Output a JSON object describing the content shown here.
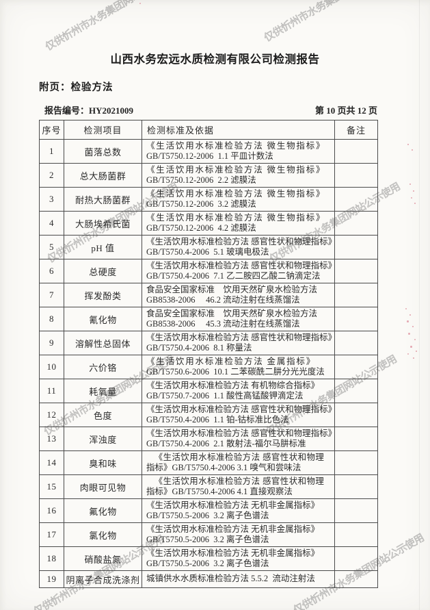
{
  "page": {
    "title": "山西水务宏远水质检测有限公司检测报告",
    "subtitle": "附页：检验方法",
    "report_no_label": "报告编号：",
    "report_no": "HY2021009",
    "page_indicator": "第 10 页共 12 页",
    "watermark": "仅供忻州市水务集团网站公示使用",
    "colors": {
      "watermark_gray": "#808080",
      "seal_residue_red": "#cc4a62",
      "paper": "#fbfaf7",
      "ink": "#2b2b2b"
    }
  },
  "table": {
    "headers": [
      "序号",
      "检测项目",
      "检测标准及依据",
      "备注"
    ],
    "rows": [
      {
        "no": "1",
        "item": "菌落总数",
        "line1": "《生活饮用水标准检验方法 微生物指标》",
        "line2": "GB/T5750.12-2006  1.1 平皿计数法",
        "style1": "spread",
        "remark": ""
      },
      {
        "no": "2",
        "item": "总大肠菌群",
        "line1": "《生活饮用水标准检验方法 微生物指标》",
        "line2": "GB/T5750.12-2006  2.2 滤膜法",
        "style1": "spread",
        "remark": ""
      },
      {
        "no": "3",
        "item": "耐热大肠菌群",
        "line1": "《生活饮用水标准检验方法 微生物指标》",
        "line2": "GB/T5750.12-2006  3.2 滤膜法",
        "style1": "spread",
        "remark": ""
      },
      {
        "no": "4",
        "item": "大肠埃希氏菌",
        "line1": "《生活饮用水标准检验方法 微生物指标》",
        "line2": "GB/T5750.12-2006  4.2 滤膜法",
        "style1": "spread",
        "remark": ""
      },
      {
        "no": "5",
        "item": "pH 值",
        "line1": "《生活饮用水标准检验方法 感官性状和物理指标》",
        "line2": "GB/T5750.4-2006  5.1 玻璃电极法",
        "style1": "",
        "remark": ""
      },
      {
        "no": "6",
        "item": "总硬度",
        "line1": "《生活饮用水标准检验方法 感官性状和物理指标》",
        "line2": "GB/T5750.4-2006  7.1 乙二胺四乙酸二钠滴定法",
        "style1": "",
        "remark": ""
      },
      {
        "no": "7",
        "item": "挥发酚类",
        "line1": "食品安全国家标准　饮用天然矿泉水检验方法",
        "line2": "GB8538-2006 　46.2 流动注射在线蒸馏法",
        "style1": "",
        "remark": ""
      },
      {
        "no": "8",
        "item": "氰化物",
        "line1": "食品安全国家标准　饮用天然矿泉水检验方法",
        "line2": "GB8538-2006 　45.3 流动注射在线蒸馏法",
        "style1": "",
        "remark": ""
      },
      {
        "no": "9",
        "item": "溶解性总固体",
        "line1": "《生活饮用水标准检验方法 感官性状和物理指标》",
        "line2": "GB/T5750.4-2006  8.1 称量法",
        "style1": "",
        "remark": ""
      },
      {
        "no": "10",
        "item": "六价铬",
        "line1": "《生活饮用水标准检验方法 金属指标》",
        "line2": "GB/T5750.6-2006  10.1 二苯碳酰二肼分光光度法",
        "style1": "spread",
        "remark": ""
      },
      {
        "no": "11",
        "item": "耗氧量",
        "line1": "《生活饮用水标准检验方法 有机物综合指标》",
        "line2": "GB/T5750.7-2006  1.1 酸性高锰酸钾滴定法",
        "style1": "",
        "remark": ""
      },
      {
        "no": "12",
        "item": "色度",
        "line1": "《生活饮用水标准检验方法 感官性状和物理指标》",
        "line2": "GB/T5750.4-2006  1.1 铂-钴标准比色法",
        "style1": "",
        "remark": ""
      },
      {
        "no": "13",
        "item": "浑浊度",
        "line1": "《生活饮用水标准检验方法 感官性状和物理指标》",
        "line2": "GB/T5750.4-2006  2.1 散射法-福尔马肼标准",
        "style1": "",
        "remark": ""
      },
      {
        "no": "14",
        "item": "臭和味",
        "line1": "《生活饮用水标准检验方法 感官性状和物理",
        "line2": "指标》GB/T5750.4-2006 3.1 嗅气和尝味法",
        "style1": "cen",
        "remark": ""
      },
      {
        "no": "15",
        "item": "肉眼可见物",
        "line1": "《生活饮用水标准检验方法 感官性状和物理",
        "line2": "指标》GB/T5750.4-2006 4.1 直接观察法",
        "style1": "cen",
        "remark": ""
      },
      {
        "no": "16",
        "item": "氟化物",
        "line1": "《生活饮用水标准检验方法 无机非金属指标》",
        "line2": "GB/T5750.5-2006  3.2 离子色谱法",
        "style1": "",
        "remark": ""
      },
      {
        "no": "17",
        "item": "氯化物",
        "line1": "《生活饮用水标准检验方法 无机非金属指标》",
        "line2": "GB/T5750.5-2006  3.2 离子色谱法",
        "style1": "",
        "remark": ""
      },
      {
        "no": "18",
        "item": "硝酸盐氮",
        "line1": "《生活饮用水标准检验方法 无机非金属指标》",
        "line2": "GB/T5750.5-2006  3.2 离子色谱法",
        "style1": "",
        "remark": ""
      },
      {
        "no": "19",
        "item": "阴离子合成洗涤剂",
        "line1": "城镇供水水质标准检验方法 5.5.2  流动注射法",
        "line2": "",
        "style1": "",
        "remark": ""
      }
    ]
  }
}
